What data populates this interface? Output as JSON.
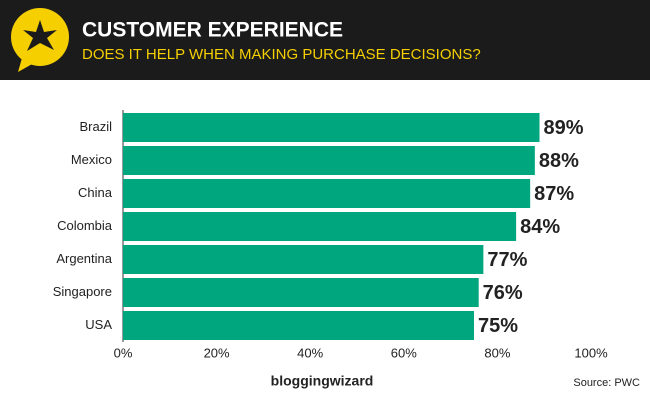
{
  "chart_data": {
    "type": "hbar",
    "title": "CUSTOMER EXPERIENCE",
    "subtitle": "DOES IT HELP WHEN MAKING PURCHASE DECISIONS?",
    "categories": [
      "Brazil",
      "Mexico",
      "China",
      "Colombia",
      "Argentina",
      "Singapore",
      "USA"
    ],
    "values": [
      89,
      88,
      87,
      84,
      77,
      76,
      75
    ],
    "value_labels": [
      "89%",
      "88%",
      "87%",
      "84%",
      "77%",
      "76%",
      "75%"
    ],
    "color": "#00a67e",
    "xlim": [
      0,
      100
    ],
    "xticks": [
      {
        "value": 0,
        "label": "0%"
      },
      {
        "value": 20,
        "label": "20%"
      },
      {
        "value": 40,
        "label": "40%"
      },
      {
        "value": 60,
        "label": "60%"
      },
      {
        "value": 80,
        "label": "80%"
      },
      {
        "value": 100,
        "label": "100%"
      }
    ],
    "grid": false,
    "brand": "bloggingwizard",
    "source": "Source: PWC"
  }
}
